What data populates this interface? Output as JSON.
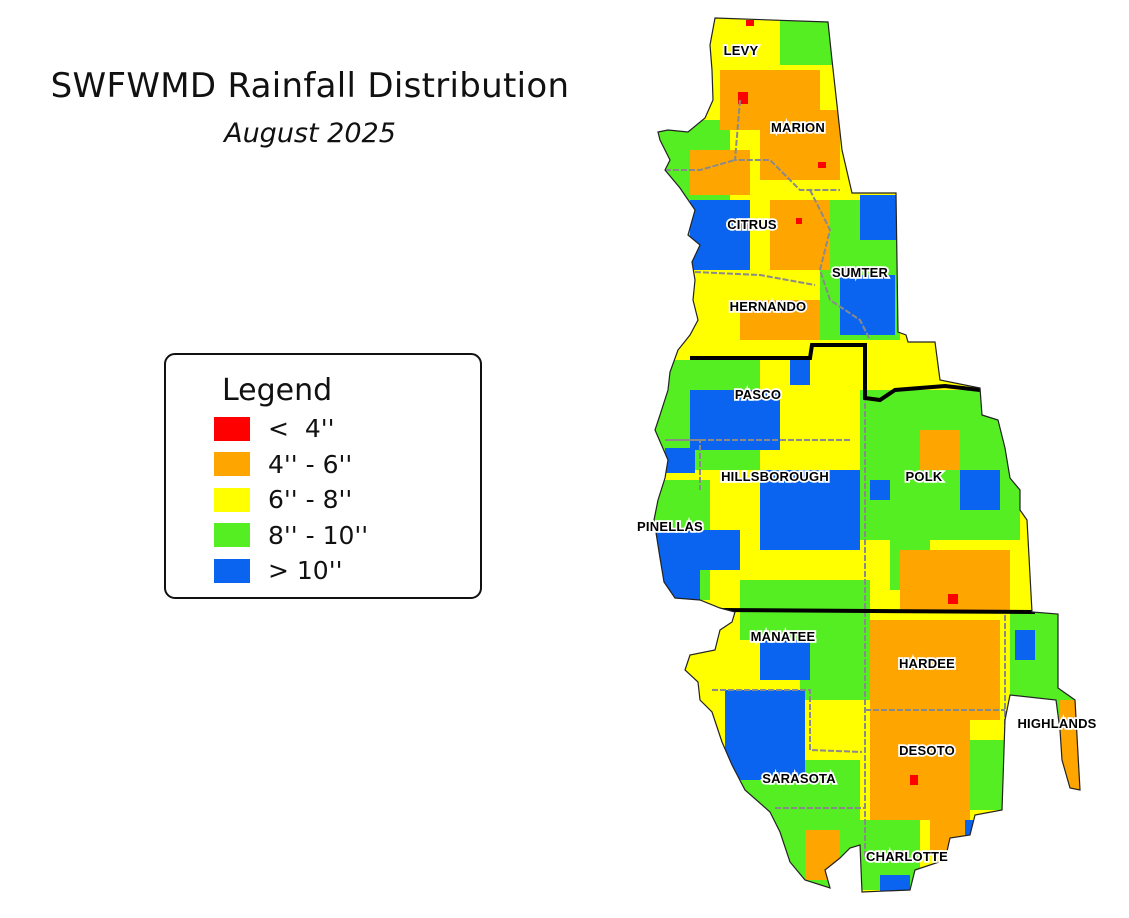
{
  "title": "SWFWMD Rainfall Distribution",
  "subtitle": "August 2025",
  "legend": {
    "title": "Legend",
    "items": [
      {
        "label": "<  4''",
        "color": "#ff0000"
      },
      {
        "label": "4'' - 6''",
        "color": "#ffa500"
      },
      {
        "label": "6'' - 8''",
        "color": "#ffff00"
      },
      {
        "label": "8'' - 10''",
        "color": "#55ee22"
      },
      {
        "label": "> 10''",
        "color": "#0a64f0"
      }
    ]
  },
  "counties": [
    "LEVY",
    "MARION",
    "CITRUS",
    "SUMTER",
    "HERNANDO",
    "PASCO",
    "HILLSBOROUGH",
    "POLK",
    "PINELLAS",
    "MANATEE",
    "HARDEE",
    "HIGHLANDS",
    "DESOTO",
    "SARASOTA",
    "CHARLOTTE"
  ]
}
